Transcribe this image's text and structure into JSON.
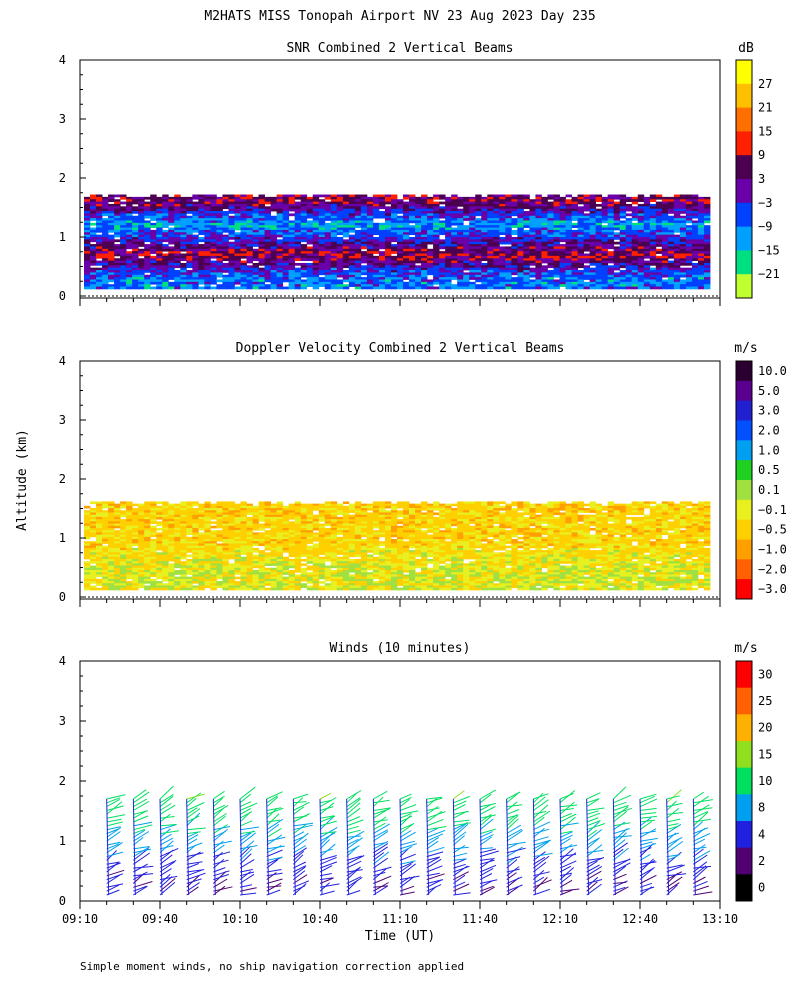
{
  "title": "M2HATS MISS Tonopah Airport NV  23 Aug 2023 Day 235",
  "ylabel": "Altitude (km)",
  "xlabel": "Time (UT)",
  "footnote": "Simple moment winds, no ship navigation correction applied",
  "chart_data": [
    {
      "type": "heatmap",
      "title": "SNR Combined 2 Vertical Beams",
      "colorbar_unit": "dB",
      "colorbar_ticks": [
        "27",
        "21",
        "15",
        "9",
        "3",
        "−3",
        "−9",
        "−15",
        "−21"
      ],
      "colorbar_colors": [
        "#ffff00",
        "#ffc000",
        "#ff7000",
        "#ff2000",
        "#4b0050",
        "#6a00a8",
        "#0040ff",
        "#00a0ff",
        "#00e080",
        "#c0ff30"
      ],
      "x_ticks": [],
      "y_ticks": [
        "4",
        "3",
        "2",
        "1",
        "0"
      ],
      "ylim": [
        0,
        4
      ],
      "xlim": [
        "09:10",
        "13:10"
      ],
      "profile": [
        {
          "altitude_km": 1.6,
          "snr_db": 6
        },
        {
          "altitude_km": 1.2,
          "snr_db": -12
        },
        {
          "altitude_km": 0.7,
          "snr_db": 8
        },
        {
          "altitude_km": 0.3,
          "snr_db": -9
        }
      ]
    },
    {
      "type": "heatmap",
      "title": "Doppler Velocity Combined 2 Vertical Beams",
      "colorbar_unit": "m/s",
      "colorbar_ticks": [
        "10.0",
        "5.0",
        "3.0",
        "2.0",
        "1.0",
        "0.5",
        "0.1",
        "−0.1",
        "−0.5",
        "−1.0",
        "−2.0",
        "−3.0"
      ],
      "colorbar_colors": [
        "#2a0030",
        "#5a0090",
        "#2020d0",
        "#0050ff",
        "#00a0f0",
        "#20d020",
        "#a0e040",
        "#e8f020",
        "#ffd000",
        "#ffa000",
        "#ff6000",
        "#ff0000"
      ],
      "x_ticks": [],
      "y_ticks": [
        "4",
        "3",
        "2",
        "1",
        "0"
      ],
      "ylim": [
        0,
        4
      ],
      "xlim": [
        "09:10",
        "13:10"
      ],
      "profile": [
        {
          "altitude_km": 1.5,
          "velocity_ms": -0.5
        },
        {
          "altitude_km": 1.0,
          "velocity_ms": -0.5
        },
        {
          "altitude_km": 0.4,
          "velocity_ms": -0.1
        }
      ]
    },
    {
      "type": "scatter",
      "title": "Winds (10 minutes)",
      "colorbar_unit": "m/s",
      "colorbar_ticks": [
        "30",
        "25",
        "20",
        "15",
        "10",
        "8",
        "4",
        "2",
        "0"
      ],
      "colorbar_colors": [
        "#ff0000",
        "#ff6000",
        "#ffb000",
        "#90e020",
        "#00e060",
        "#00a0f0",
        "#2020e0",
        "#500070",
        "#000000"
      ],
      "x_ticks": [
        "09:10",
        "09:40",
        "10:10",
        "10:40",
        "11:10",
        "11:40",
        "12:10",
        "12:40",
        "13:10"
      ],
      "y_ticks": [
        "4",
        "3",
        "2",
        "1",
        "0"
      ],
      "ylim": [
        0,
        4
      ],
      "xlim": [
        "09:10",
        "13:10"
      ],
      "profile_times": [
        "09:20",
        "09:30",
        "09:40",
        "09:50",
        "10:00",
        "10:10",
        "10:20",
        "10:30",
        "10:40",
        "10:50",
        "11:00",
        "11:10",
        "11:20",
        "11:30",
        "11:40",
        "11:50",
        "12:00",
        "12:10",
        "12:20",
        "12:30",
        "12:40",
        "12:50",
        "13:00"
      ],
      "profile": [
        {
          "altitude_km": 1.7,
          "speed_ms": 12
        },
        {
          "altitude_km": 1.0,
          "speed_ms": 8
        },
        {
          "altitude_km": 0.3,
          "speed_ms": 3
        }
      ]
    }
  ]
}
